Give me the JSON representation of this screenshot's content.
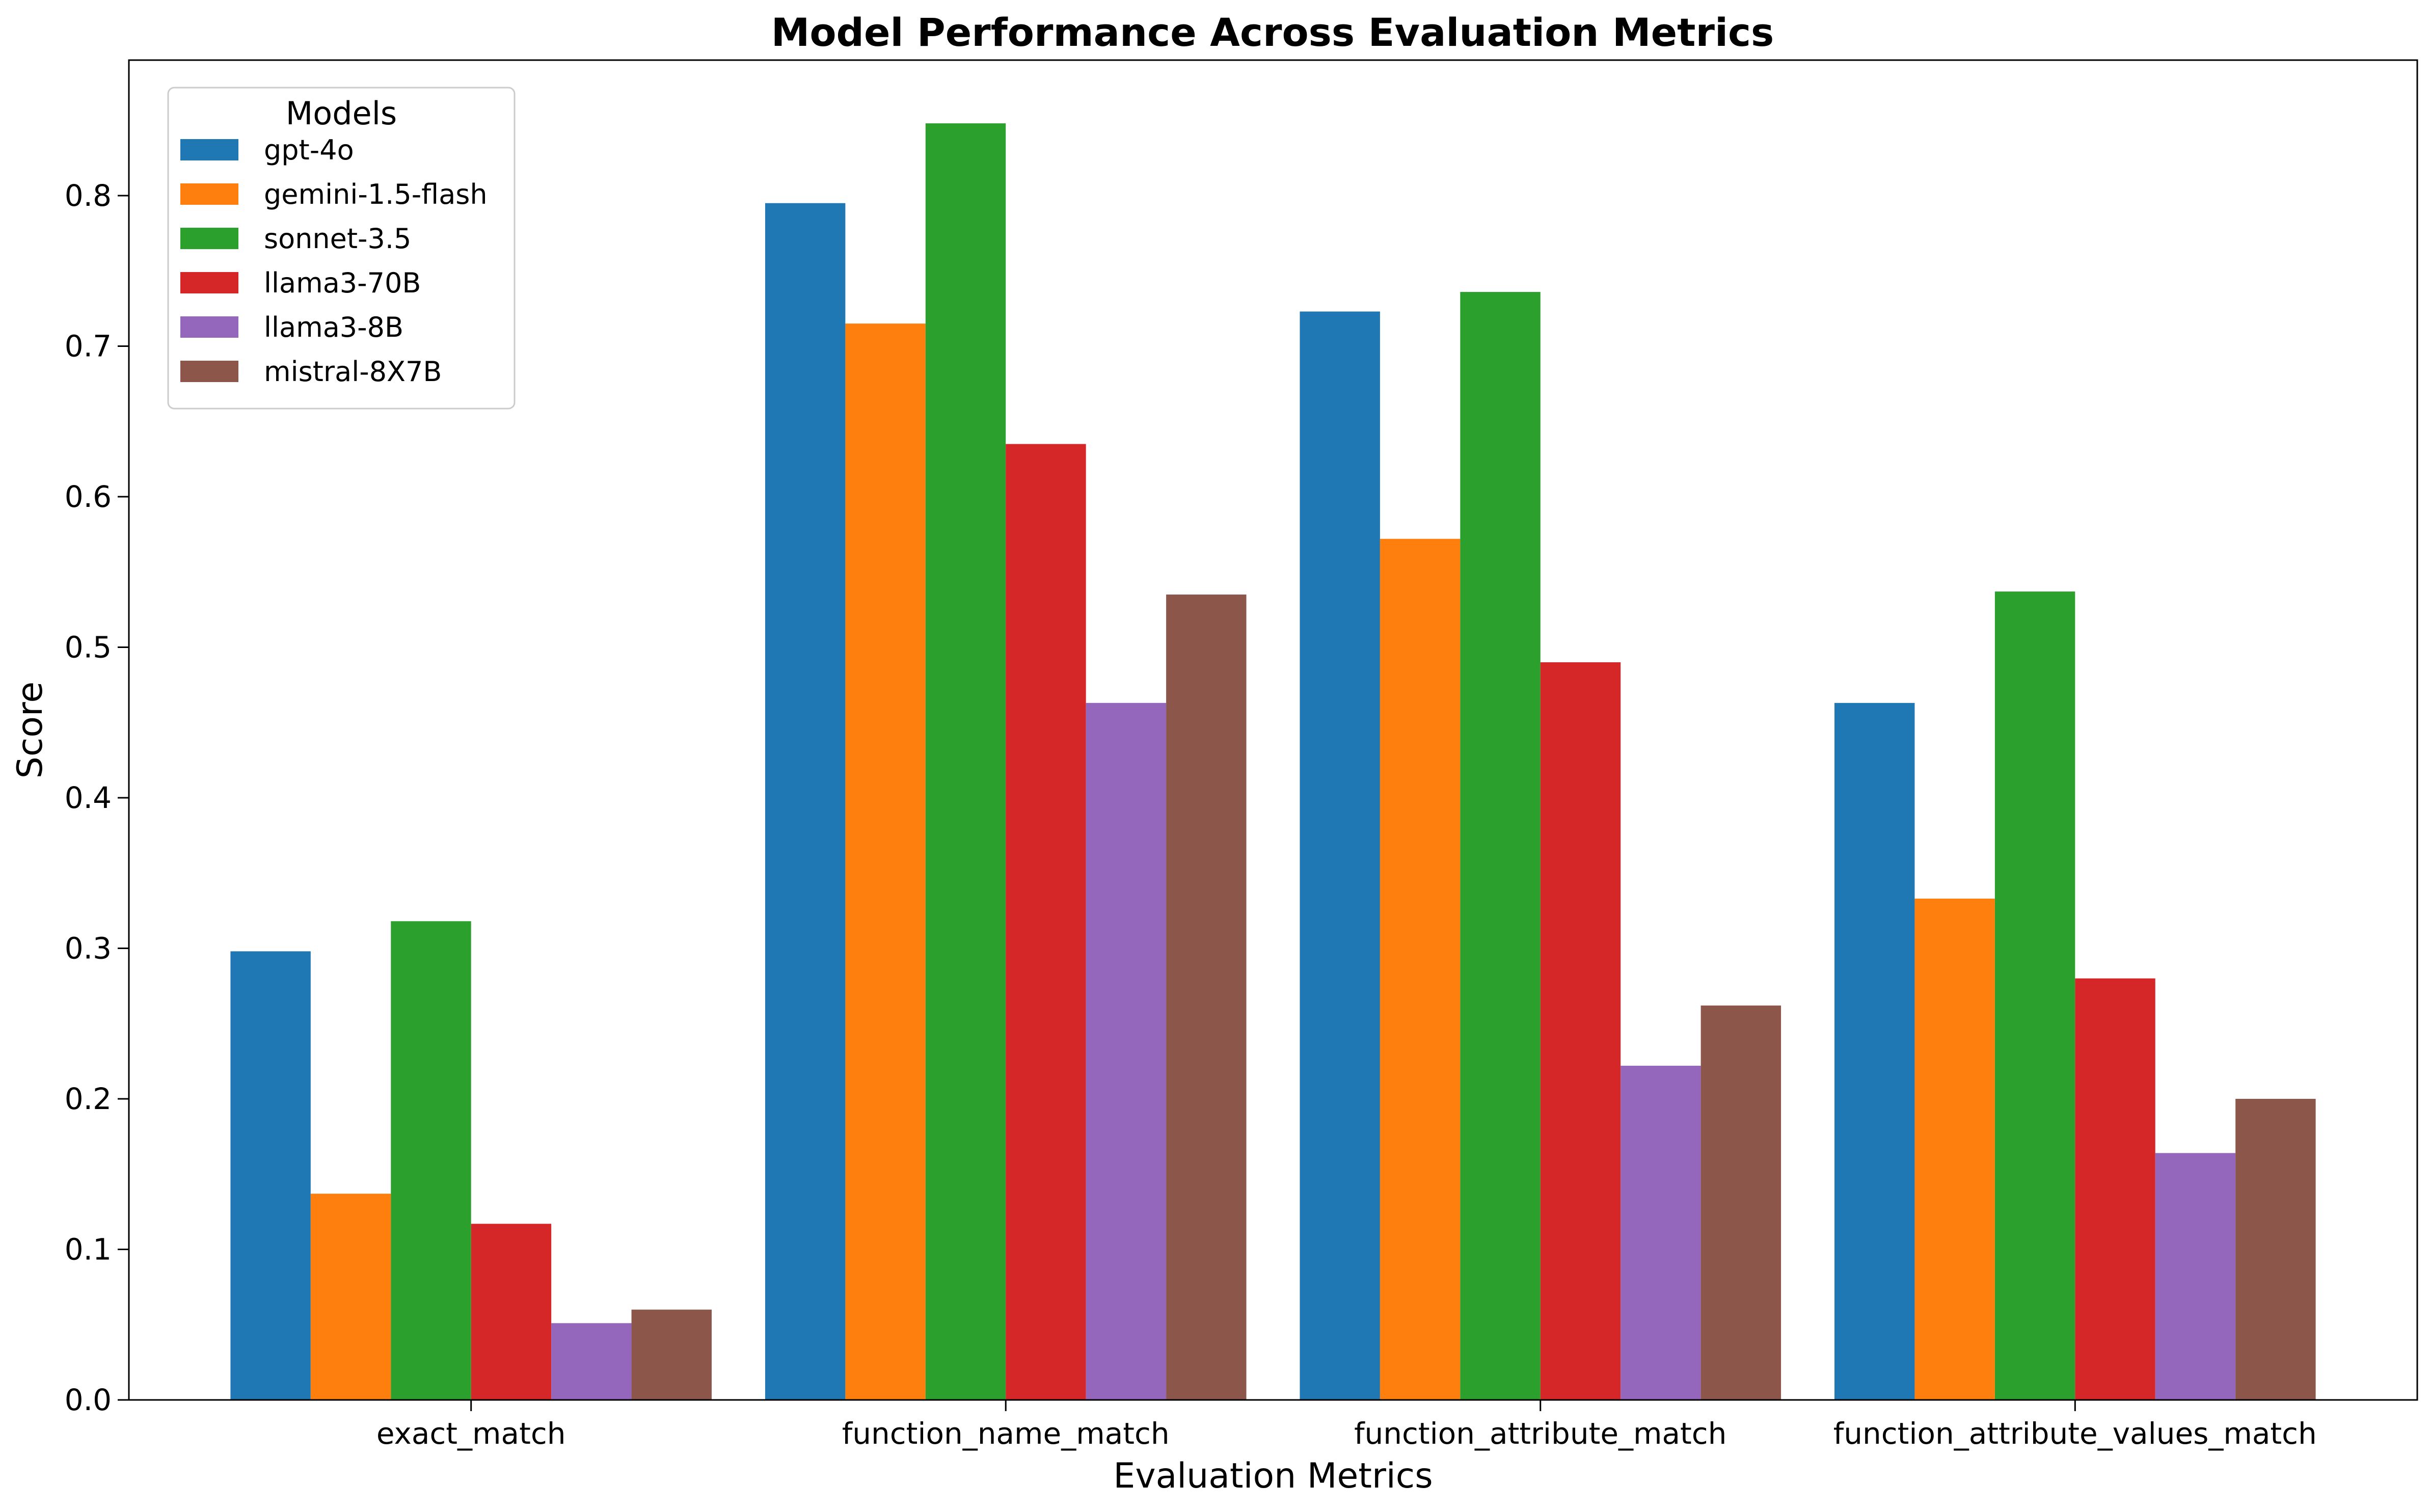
{
  "chart_data": {
    "type": "bar",
    "title": "Model Performance Across Evaluation Metrics",
    "xlabel": "Evaluation Metrics",
    "ylabel": "Score",
    "ylim": [
      0,
      0.89
    ],
    "yticks": [
      "0.0",
      "0.1",
      "0.2",
      "0.3",
      "0.4",
      "0.5",
      "0.6",
      "0.7",
      "0.8"
    ],
    "grid": false,
    "legend": {
      "title": "Models",
      "placement": "top-left"
    },
    "categories": [
      "exact_match",
      "function_name_match",
      "function_attribute_match",
      "function_attribute_values_match"
    ],
    "series": [
      {
        "name": "gpt-4o",
        "color": "#1f77b4",
        "values": [
          0.298,
          0.795,
          0.723,
          0.463
        ]
      },
      {
        "name": "gemini-1.5-flash",
        "color": "#ff7f0e",
        "values": [
          0.137,
          0.715,
          0.572,
          0.333
        ]
      },
      {
        "name": "sonnet-3.5",
        "color": "#2ca02c",
        "values": [
          0.318,
          0.848,
          0.736,
          0.537
        ]
      },
      {
        "name": "llama3-70B",
        "color": "#d62728",
        "values": [
          0.117,
          0.635,
          0.49,
          0.28
        ]
      },
      {
        "name": "llama3-8B",
        "color": "#9467bd",
        "values": [
          0.051,
          0.463,
          0.222,
          0.164
        ]
      },
      {
        "name": "mistral-8X7B",
        "color": "#8c564b",
        "values": [
          0.06,
          0.535,
          0.262,
          0.2
        ]
      }
    ]
  }
}
